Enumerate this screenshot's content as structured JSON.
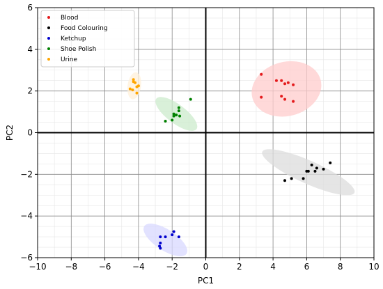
{
  "chart_data": {
    "type": "scatter",
    "xlabel": "PC1",
    "ylabel": "PC2",
    "xlim": [
      -10,
      10
    ],
    "ylim": [
      -6,
      6
    ],
    "x_ticks": [
      -10,
      -8,
      -6,
      -4,
      -2,
      0,
      2,
      4,
      6,
      8,
      10
    ],
    "y_ticks": [
      -6,
      -4,
      -2,
      0,
      2,
      4,
      6
    ],
    "x_tick_labels": [
      "−10",
      "−8",
      "−6",
      "−4",
      "−2",
      "0",
      "2",
      "4",
      "6",
      "8",
      "10"
    ],
    "y_tick_labels": [
      "−6",
      "−4",
      "−2",
      "0",
      "2",
      "4",
      "6"
    ],
    "grid": true,
    "minor_grid": true,
    "legend_position": "top-left",
    "series": [
      {
        "name": "Blood",
        "color": "#e41a1c",
        "ellipse": {
          "center": [
            4.8,
            2.1
          ],
          "width": 4.2,
          "height": 2.6,
          "angle_deg": -15,
          "fill": "#ffcccc"
        },
        "points": [
          [
            3.3,
            2.8
          ],
          [
            4.2,
            2.5
          ],
          [
            4.5,
            2.5
          ],
          [
            4.7,
            2.35
          ],
          [
            4.9,
            2.4
          ],
          [
            5.2,
            2.3
          ],
          [
            3.3,
            1.7
          ],
          [
            4.5,
            1.75
          ],
          [
            4.7,
            1.6
          ],
          [
            5.2,
            1.5
          ]
        ]
      },
      {
        "name": "Food Colouring",
        "color": "#000000",
        "ellipse": {
          "center": [
            6.1,
            -1.9
          ],
          "width": 6.0,
          "height": 1.1,
          "angle_deg": 24,
          "fill": "#dcdcdc"
        },
        "points": [
          [
            4.7,
            -2.3
          ],
          [
            5.1,
            -2.2
          ],
          [
            5.8,
            -2.2
          ],
          [
            6.0,
            -1.85
          ],
          [
            6.1,
            -1.85
          ],
          [
            6.3,
            -1.55
          ],
          [
            6.5,
            -1.85
          ],
          [
            6.6,
            -1.7
          ],
          [
            7.0,
            -1.75
          ],
          [
            7.4,
            -1.45
          ]
        ]
      },
      {
        "name": "Ketchup",
        "color": "#0000cc",
        "ellipse": {
          "center": [
            -2.4,
            -5.15
          ],
          "width": 3.0,
          "height": 1.0,
          "angle_deg": 33,
          "fill": "#d8d8ff"
        },
        "points": [
          [
            -2.7,
            -5.0
          ],
          [
            -2.4,
            -5.0
          ],
          [
            -2.0,
            -4.9
          ],
          [
            -1.9,
            -4.75
          ],
          [
            -1.6,
            -5.0
          ],
          [
            -2.7,
            -5.3
          ],
          [
            -2.75,
            -5.45
          ],
          [
            -2.7,
            -5.55
          ]
        ]
      },
      {
        "name": "Shoe Polish",
        "color": "#008000",
        "ellipse": {
          "center": [
            -1.75,
            0.9
          ],
          "width": 3.0,
          "height": 0.9,
          "angle_deg": 37,
          "fill": "#ccebcc"
        },
        "points": [
          [
            -0.9,
            1.6
          ],
          [
            -1.6,
            1.2
          ],
          [
            -1.6,
            1.05
          ],
          [
            -1.9,
            0.9
          ],
          [
            -1.75,
            0.85
          ],
          [
            -1.55,
            0.8
          ],
          [
            -1.9,
            0.8
          ],
          [
            -2.0,
            0.6
          ],
          [
            -2.4,
            0.55
          ]
        ]
      },
      {
        "name": "Urine",
        "color": "#ffa500",
        "ellipse": {
          "center": [
            -4.25,
            2.25
          ],
          "width": 0.8,
          "height": 1.3,
          "angle_deg": 8,
          "fill": "#fff0d9"
        },
        "points": [
          [
            -4.3,
            2.55
          ],
          [
            -4.3,
            2.45
          ],
          [
            -4.2,
            2.4
          ],
          [
            -4.0,
            2.25
          ],
          [
            -4.1,
            2.2
          ],
          [
            -4.5,
            2.1
          ],
          [
            -4.35,
            2.05
          ],
          [
            -4.1,
            1.9
          ]
        ]
      }
    ]
  }
}
